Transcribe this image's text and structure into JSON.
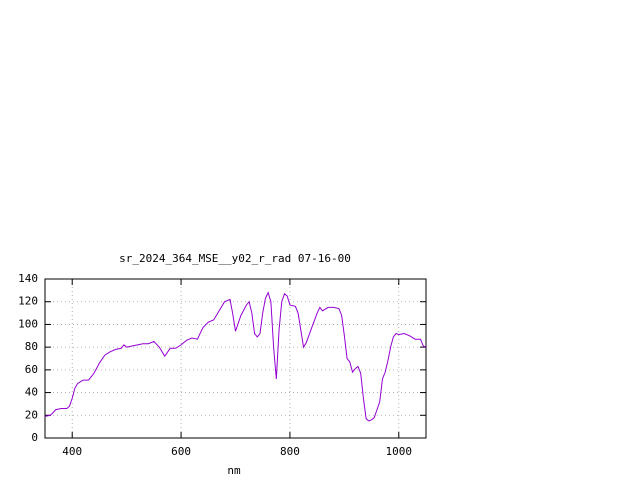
{
  "chart_data": {
    "type": "line",
    "title": "sr_2024_364_MSE__y02_r_rad 07-16-00",
    "x_label": "nm",
    "x": [
      350,
      360,
      370,
      380,
      390,
      395,
      400,
      405,
      410,
      420,
      430,
      440,
      450,
      460,
      470,
      480,
      490,
      495,
      500,
      510,
      520,
      530,
      540,
      550,
      560,
      565,
      570,
      580,
      590,
      600,
      610,
      620,
      630,
      640,
      650,
      660,
      670,
      680,
      690,
      695,
      700,
      710,
      720,
      725,
      730,
      735,
      740,
      745,
      750,
      755,
      760,
      765,
      770,
      775,
      780,
      785,
      790,
      795,
      800,
      810,
      815,
      820,
      825,
      830,
      840,
      850,
      855,
      860,
      870,
      880,
      890,
      895,
      900,
      905,
      910,
      915,
      920,
      925,
      930,
      935,
      940,
      945,
      950,
      955,
      960,
      965,
      970,
      975,
      980,
      985,
      990,
      995,
      1000,
      1010,
      1020,
      1030,
      1040,
      1045,
      1050
    ],
    "series": [
      {
        "color": "#9400d3",
        "values": [
          19,
          20,
          25,
          26,
          26,
          28,
          35,
          44,
          48,
          51,
          51,
          57,
          66,
          73,
          76,
          78,
          79,
          82,
          80,
          81,
          82,
          83,
          83,
          85,
          80,
          76,
          72,
          79,
          79,
          82,
          86,
          88,
          87,
          97,
          102,
          104,
          112,
          120,
          122,
          109,
          94,
          108,
          117,
          120,
          110,
          92,
          89,
          92,
          110,
          123,
          128,
          120,
          80,
          52,
          95,
          120,
          127,
          125,
          117,
          116,
          110,
          95,
          80,
          84,
          97,
          110,
          115,
          112,
          115,
          115,
          114,
          108,
          90,
          70,
          67,
          58,
          61,
          63,
          57,
          35,
          17,
          15,
          16,
          18,
          25,
          32,
          52,
          58,
          68,
          80,
          89,
          92,
          91,
          92,
          90,
          87,
          87,
          81,
          80
        ]
      }
    ],
    "xlim": [
      350,
      1050
    ],
    "xticks": [
      400,
      600,
      800,
      1000
    ],
    "ylim": [
      0,
      140
    ],
    "yticks": [
      0,
      20,
      40,
      60,
      80,
      100,
      120,
      140
    ],
    "grid": true
  }
}
